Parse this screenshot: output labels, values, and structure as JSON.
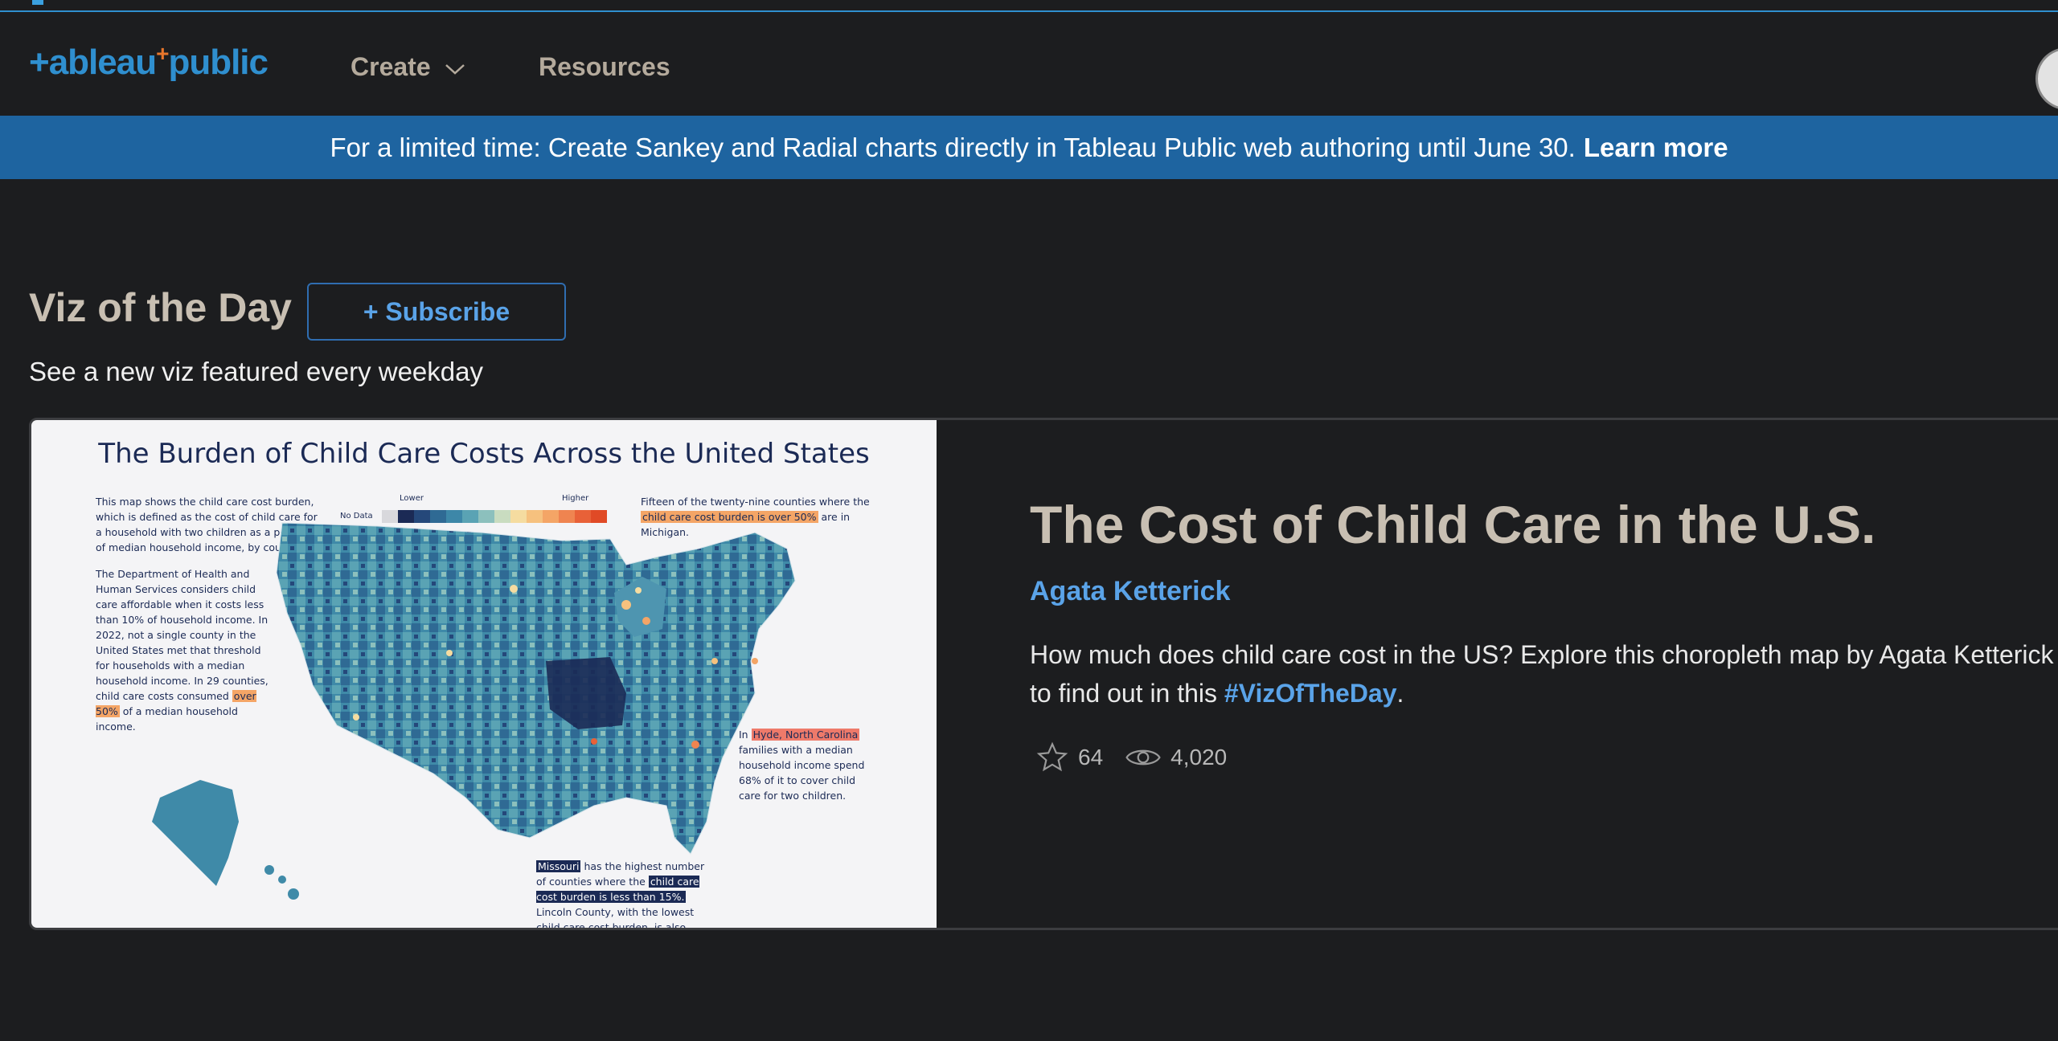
{
  "header": {
    "logo_main": "+ableau",
    "logo_accent": "+",
    "logo_tail": "public",
    "nav": {
      "create": "Create",
      "resources": "Resources"
    }
  },
  "banner": {
    "text": "For a limited time: Create Sankey and Radial charts directly in Tableau Public web authoring until June 30.",
    "link": "Learn more"
  },
  "section": {
    "title": "Viz of the Day",
    "subscribe_label": "+ Subscribe",
    "subtitle": "See a new viz featured every weekday"
  },
  "viz": {
    "thumb": {
      "title": "The Burden of Child Care Costs Across the United States",
      "legend_lower": "Lower",
      "legend_higher": "Higher",
      "legend_nodata": "No Data",
      "note_left_1": "This map shows the child care cost burden, which is defined as the cost of child care for a household with two children as a percent of median household income, by county.",
      "note_left_2a": "The Department of Health and Human Services considers child care affordable when it costs less than 10% of household income. In 2022, not a single county in the United States met that threshold for households with a median household income. In 29 counties, child care costs consumed",
      "note_left_2_hl": "over 50%",
      "note_left_2b": "of a median household income.",
      "note_right_a": "Fifteen of the twenty-nine counties where the",
      "note_right_hl": "child care cost burden is over 50%",
      "note_right_b": "are in Michigan.",
      "note_nc_a": "In",
      "note_nc_hl": "Hyde, North Carolina",
      "note_nc_b": "families with a median household income spend 68% of it to cover child care for two children.",
      "note_mo_hl1": "Missouri",
      "note_mo_a": "has the highest number of counties where the",
      "note_mo_hl2": "child care cost burden is less than 15%.",
      "note_mo_b": "Lincoln County, with the lowest child care cost burden, is also found in Missouri."
    },
    "title": "The Cost of Child Care in the U.S.",
    "author": "Agata Ketterick",
    "description": "How much does child care cost in the US? Explore this choropleth map by Agata Ketterick to find out in this",
    "hashtag": "#VizOfTheDay",
    "description_end": ".",
    "favorites": "64",
    "views": "4,020"
  },
  "colors": {
    "background": "#1c1d1f",
    "banner": "#1e64a0",
    "accent_blue": "#5aa3e8",
    "title_beige": "#c8bfb2"
  }
}
